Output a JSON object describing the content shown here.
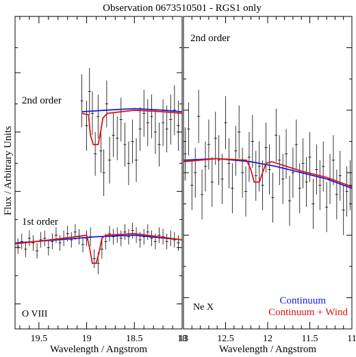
{
  "title": "Observation 0673510501 - RGS1 only",
  "ylabel": "Flux / Arbitrary Units",
  "colors": {
    "continuum": "#1a1adb",
    "wind": "#e01010",
    "data": "#000000"
  },
  "chart_data": [
    {
      "type": "line",
      "panel": "left",
      "xlabel": "Wavelength / Angstrom",
      "xlim": [
        19.75,
        18.0
      ],
      "xticks": [
        "19.5",
        "19",
        "18.5",
        "18"
      ],
      "xtick_values": [
        19.5,
        19.0,
        18.5,
        18.0
      ],
      "ylim": [
        0,
        10
      ],
      "labels": {
        "upper": "2nd order",
        "lower": "1st order",
        "ion": "O VIII"
      },
      "spectra": [
        {
          "name": "2nd order",
          "x": [
            19.05,
            19.0,
            18.97,
            18.94,
            18.91,
            18.88,
            18.85,
            18.82,
            18.79,
            18.76,
            18.72,
            18.68,
            18.64,
            18.6,
            18.56,
            18.52,
            18.48,
            18.44,
            18.4,
            18.36,
            18.32,
            18.28,
            18.24,
            18.2,
            18.16,
            18.12,
            18.08,
            18.04
          ],
          "y": [
            7.3,
            6.5,
            7.6,
            6.9,
            5.6,
            6.8,
            5.7,
            5.0,
            7.2,
            5.4,
            6.2,
            6.1,
            6.7,
            5.9,
            5.3,
            6.0,
            5.4,
            6.4,
            6.9,
            6.6,
            6.8,
            6.3,
            5.9,
            6.6,
            6.4,
            6.7,
            7.0,
            6.5
          ],
          "err": [
            0.85,
            0.8,
            0.75,
            0.7,
            0.7,
            0.7,
            0.7,
            0.75,
            0.75,
            0.75,
            0.7,
            0.7,
            0.7,
            0.7,
            0.7,
            0.7,
            0.7,
            0.7,
            0.75,
            0.75,
            0.7,
            0.7,
            0.7,
            0.75,
            0.75,
            0.8,
            0.8,
            0.8
          ],
          "continuum": {
            "x": [
              19.05,
              18.8,
              18.5,
              18.2,
              18.0
            ],
            "y": [
              6.95,
              7.0,
              7.05,
              7.0,
              6.95
            ]
          },
          "wind": {
            "x": [
              19.05,
              18.98,
              18.96,
              18.93,
              18.88,
              18.86,
              18.83,
              18.78,
              18.5,
              18.2,
              18.0
            ],
            "y": [
              6.9,
              6.85,
              6.2,
              5.9,
              5.9,
              6.2,
              6.75,
              6.9,
              7.0,
              6.95,
              6.9
            ]
          }
        },
        {
          "name": "1st order",
          "x": [
            19.72,
            19.68,
            19.64,
            19.6,
            19.56,
            19.52,
            19.48,
            19.44,
            19.4,
            19.36,
            19.32,
            19.28,
            19.24,
            19.2,
            19.16,
            19.12,
            19.08,
            19.04,
            19.0,
            18.96,
            18.92,
            18.88,
            18.84,
            18.8,
            18.76,
            18.72,
            18.68,
            18.64,
            18.6,
            18.56,
            18.52,
            18.48,
            18.44,
            18.4,
            18.36,
            18.32,
            18.28,
            18.24,
            18.2,
            18.16,
            18.12,
            18.08,
            18.04
          ],
          "y": [
            2.65,
            2.8,
            2.55,
            2.9,
            2.75,
            2.5,
            2.85,
            2.9,
            2.6,
            2.8,
            3.0,
            2.75,
            2.9,
            3.05,
            2.85,
            3.1,
            2.95,
            2.7,
            2.9,
            2.95,
            2.25,
            2.1,
            2.55,
            2.8,
            3.05,
            2.95,
            3.0,
            2.9,
            3.1,
            2.95,
            3.15,
            3.0,
            2.85,
            2.95,
            3.1,
            2.9,
            2.8,
            3.0,
            2.95,
            2.8,
            2.9,
            2.85,
            2.75
          ],
          "err": [
            0.25,
            0.25,
            0.25,
            0.25,
            0.25,
            0.25,
            0.25,
            0.25,
            0.25,
            0.25,
            0.25,
            0.25,
            0.25,
            0.25,
            0.25,
            0.25,
            0.25,
            0.25,
            0.25,
            0.3,
            0.3,
            0.35,
            0.3,
            0.25,
            0.25,
            0.25,
            0.25,
            0.25,
            0.25,
            0.25,
            0.25,
            0.25,
            0.25,
            0.25,
            0.25,
            0.25,
            0.25,
            0.25,
            0.25,
            0.25,
            0.25,
            0.25,
            0.25
          ],
          "continuum": {
            "x": [
              19.75,
              19.3,
              18.9,
              18.5,
              18.0
            ],
            "y": [
              2.75,
              2.85,
              2.95,
              3.0,
              2.85
            ]
          },
          "wind": {
            "x": [
              19.75,
              19.3,
              19.0,
              18.97,
              18.94,
              18.9,
              18.87,
              18.84,
              18.8,
              18.5,
              18.0
            ],
            "y": [
              2.72,
              2.88,
              3.0,
              2.6,
              2.1,
              2.1,
              2.45,
              2.9,
              3.0,
              3.05,
              2.85
            ]
          }
        }
      ]
    },
    {
      "type": "line",
      "panel": "right",
      "xlabel": "Wavelength / Angstrom",
      "xlim": [
        13.0,
        11.0
      ],
      "xticks": [
        "13",
        "12.5",
        "12",
        "11.5",
        "11"
      ],
      "xtick_values": [
        13.0,
        12.5,
        12.0,
        11.5,
        11.0
      ],
      "ylim": [
        0,
        10
      ],
      "labels": {
        "upper": "2nd order",
        "ion": "Ne X"
      },
      "legend": {
        "position": "bottom-right",
        "entries": [
          "Continuum",
          "Continuum + Wind"
        ]
      },
      "spectra": [
        {
          "name": "2nd order",
          "x": [
            12.98,
            12.94,
            12.9,
            12.86,
            12.82,
            12.78,
            12.74,
            12.7,
            12.66,
            12.62,
            12.58,
            12.54,
            12.5,
            12.46,
            12.42,
            12.38,
            12.34,
            12.3,
            12.26,
            12.22,
            12.18,
            12.14,
            12.1,
            12.06,
            12.02,
            11.98,
            11.94,
            11.9,
            11.86,
            11.82,
            11.78,
            11.74,
            11.7,
            11.66,
            11.62,
            11.58,
            11.54,
            11.5,
            11.46,
            11.42,
            11.38,
            11.34,
            11.3,
            11.26,
            11.22,
            11.18,
            11.14,
            11.1,
            11.06,
            11.02
          ],
          "y": [
            5.6,
            6.4,
            4.6,
            5.0,
            6.8,
            4.3,
            5.2,
            5.9,
            4.7,
            6.1,
            5.4,
            4.8,
            6.6,
            5.3,
            4.5,
            5.7,
            6.3,
            5.0,
            4.4,
            5.5,
            6.0,
            4.9,
            5.2,
            4.6,
            5.8,
            5.1,
            4.2,
            6.2,
            5.4,
            4.8,
            5.6,
            4.1,
            5.0,
            5.9,
            4.5,
            5.3,
            4.7,
            5.5,
            4.0,
            5.1,
            4.6,
            5.2,
            3.9,
            4.8,
            5.4,
            4.3,
            4.9,
            3.8,
            4.4,
            4.6
          ],
          "err": [
            0.85,
            0.85,
            0.8,
            0.8,
            0.85,
            0.8,
            0.8,
            0.8,
            0.8,
            0.85,
            0.8,
            0.8,
            0.85,
            0.8,
            0.8,
            0.8,
            0.85,
            0.8,
            0.8,
            0.8,
            0.85,
            0.8,
            0.8,
            0.8,
            0.8,
            0.8,
            0.8,
            0.85,
            0.8,
            0.8,
            0.8,
            0.8,
            0.8,
            0.8,
            0.8,
            0.8,
            0.8,
            0.8,
            0.8,
            0.8,
            0.8,
            0.8,
            0.8,
            0.8,
            0.8,
            0.8,
            0.8,
            0.8,
            0.8,
            0.8
          ],
          "continuum": {
            "x": [
              13.0,
              12.6,
              12.2,
              11.9,
              11.6,
              11.3,
              11.0
            ],
            "y": [
              5.4,
              5.45,
              5.35,
              5.2,
              5.0,
              4.8,
              4.5
            ]
          },
          "wind": {
            "x": [
              13.0,
              12.6,
              12.25,
              12.2,
              12.16,
              12.1,
              12.06,
              12.02,
              11.95,
              11.6,
              11.3,
              11.0
            ],
            "y": [
              5.35,
              5.45,
              5.4,
              5.1,
              4.7,
              4.7,
              5.0,
              5.3,
              5.35,
              5.05,
              4.85,
              4.55
            ]
          }
        }
      ]
    }
  ]
}
